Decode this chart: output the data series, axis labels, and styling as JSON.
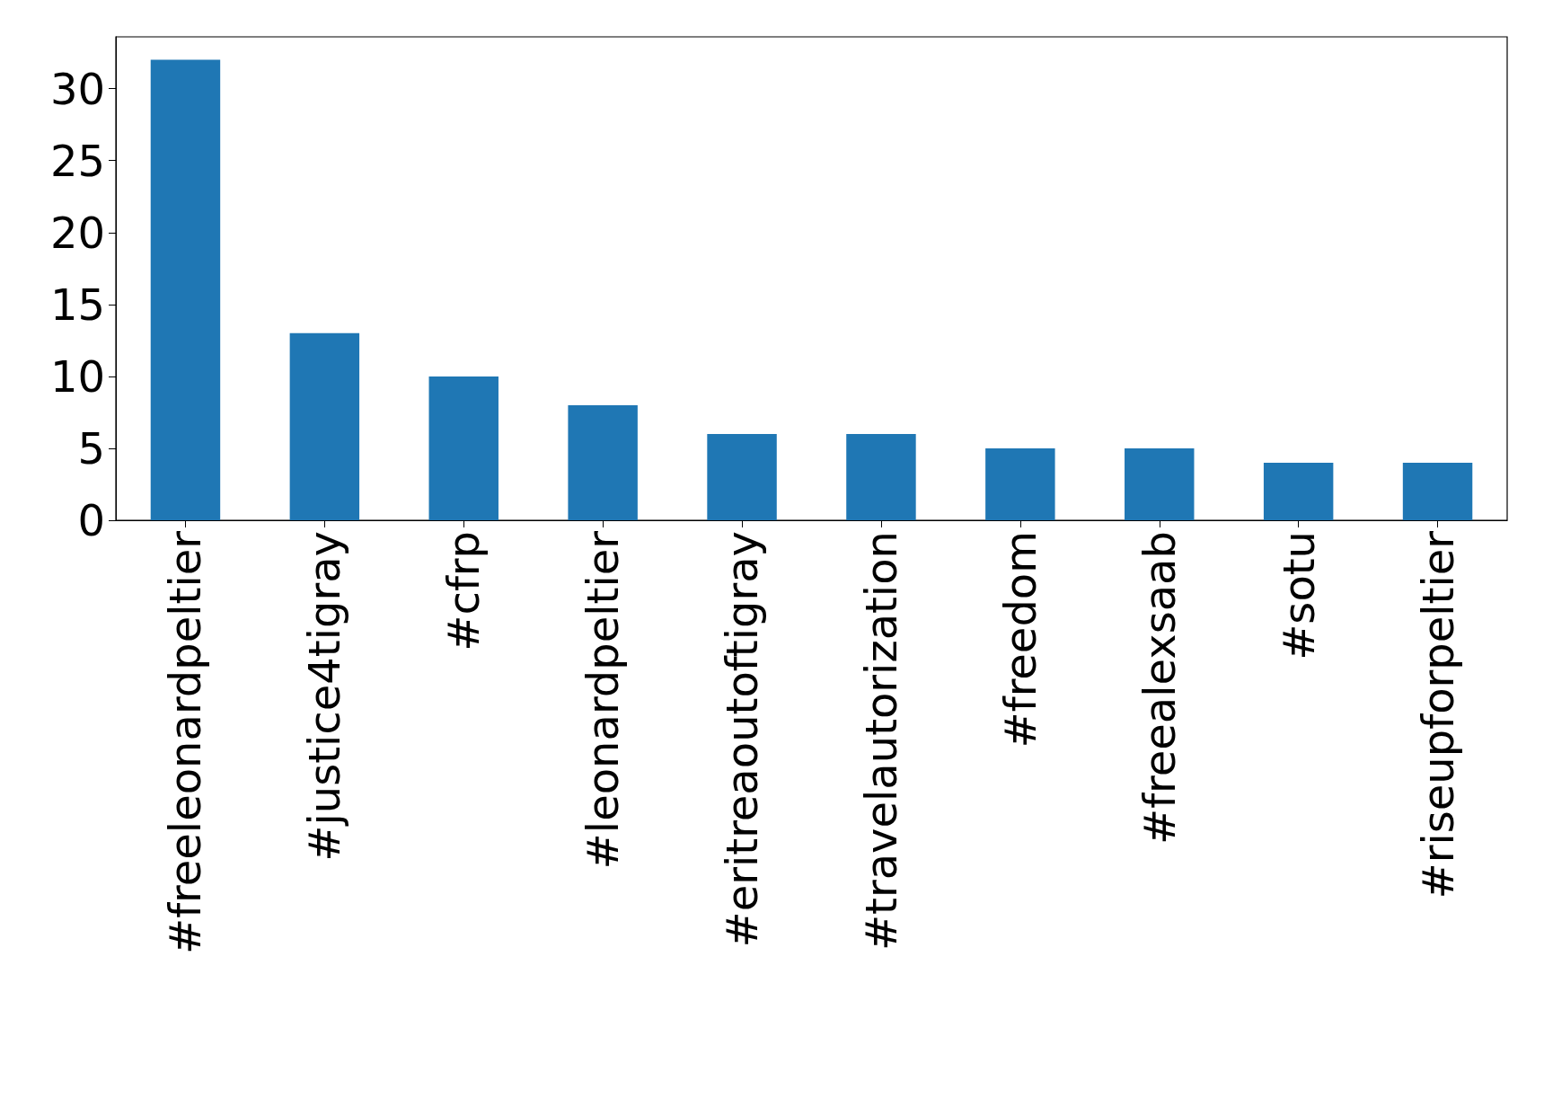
{
  "chart_data": {
    "type": "bar",
    "categories": [
      "#freeleonardpeltier",
      "#justice4tigray",
      "#cfrp",
      "#leonardpeltier",
      "#eritreaoutoftigray",
      "#travelautorization",
      "#freedom",
      "#freealexsaab",
      "#sotu",
      "#riseupforpeltier"
    ],
    "values": [
      32,
      13,
      10,
      8,
      6,
      6,
      5,
      5,
      4,
      4
    ],
    "color": "#1f77b4",
    "ylim": [
      0,
      33.6
    ],
    "yticks": [
      0,
      5,
      10,
      15,
      20,
      25,
      30
    ],
    "grid": false
  }
}
